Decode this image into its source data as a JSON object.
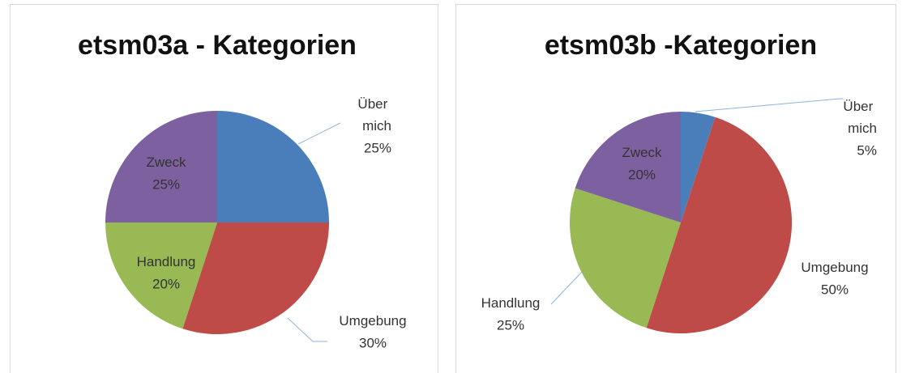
{
  "chart_data": [
    {
      "type": "pie",
      "title": "etsm03a - Kategorien",
      "categories": [
        "Über mich",
        "Umgebung",
        "Handlung",
        "Zweck"
      ],
      "values": [
        25,
        30,
        20,
        25
      ],
      "value_labels": [
        "25%",
        "30%",
        "20%",
        "25%"
      ],
      "colors": [
        "#4a7ebb",
        "#be4b48",
        "#98b954",
        "#7d60a0"
      ]
    },
    {
      "type": "pie",
      "title": "etsm03b -Kategorien",
      "categories": [
        "Über mich",
        "Umgebung",
        "Handlung",
        "Zweck"
      ],
      "values": [
        5,
        50,
        25,
        20
      ],
      "value_labels": [
        "5%",
        "50%",
        "25%",
        "20%"
      ],
      "colors": [
        "#4a7ebb",
        "#be4b48",
        "#98b954",
        "#7d60a0"
      ]
    }
  ]
}
